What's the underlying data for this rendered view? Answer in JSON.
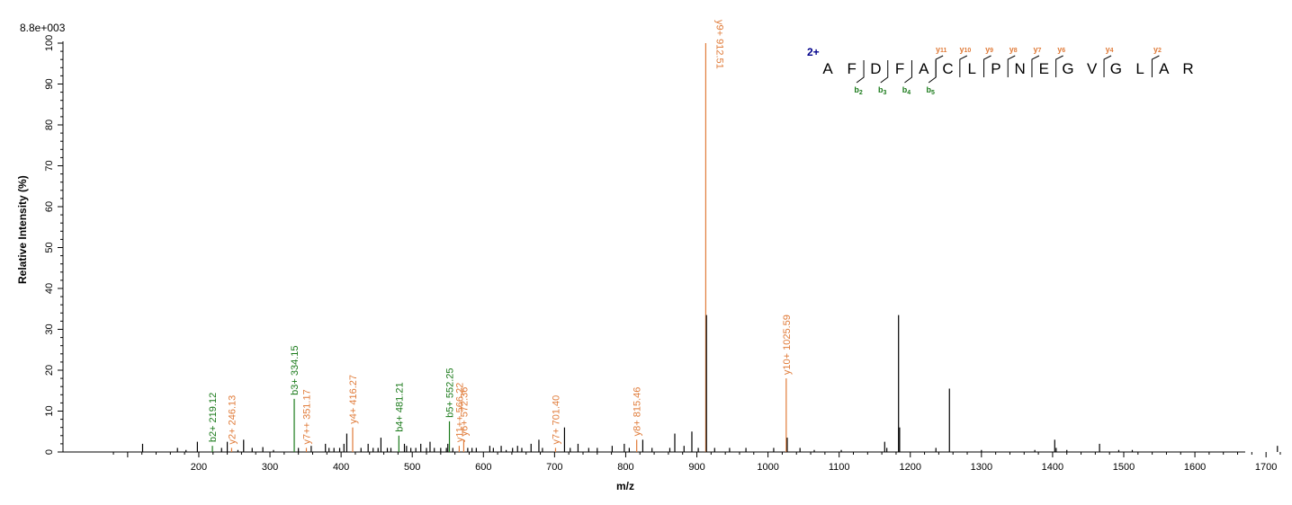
{
  "chart_data": {
    "type": "bar",
    "scale_label": "8.8e+003",
    "xlabel": "m/z",
    "ylabel": "Relative   Intensity (%)",
    "xlim": [
      70,
      1760
    ],
    "ylim": [
      0,
      100
    ],
    "x_ticks": [
      200,
      300,
      400,
      500,
      600,
      700,
      800,
      900,
      1000,
      1100,
      1200,
      1300,
      1400,
      1500,
      1600,
      1700
    ],
    "y_ticks": [
      0,
      10,
      20,
      30,
      40,
      50,
      60,
      70,
      80,
      90,
      100
    ],
    "colors": {
      "b_ion": "#1a7a1a",
      "y_ion": "#e07b39",
      "unassigned": "#000000",
      "charge": "#00008b"
    },
    "peaks": [
      [
        121,
        2
      ],
      [
        170,
        1
      ],
      [
        182,
        0.5
      ],
      [
        198,
        2.5
      ],
      [
        219.12,
        1.5
      ],
      [
        232,
        1
      ],
      [
        240,
        2.5
      ],
      [
        246.13,
        1
      ],
      [
        255,
        0.5
      ],
      [
        263,
        3
      ],
      [
        275,
        1
      ],
      [
        290,
        1.2
      ],
      [
        305,
        0.5
      ],
      [
        334.15,
        13
      ],
      [
        340,
        1
      ],
      [
        351.17,
        1
      ],
      [
        358,
        1.5
      ],
      [
        378,
        2
      ],
      [
        383,
        1
      ],
      [
        390,
        1
      ],
      [
        398,
        1
      ],
      [
        404,
        2
      ],
      [
        408,
        4.5
      ],
      [
        416.27,
        6
      ],
      [
        428,
        1
      ],
      [
        438,
        2
      ],
      [
        445,
        1
      ],
      [
        452,
        1
      ],
      [
        456,
        3.5
      ],
      [
        465,
        1
      ],
      [
        470,
        1
      ],
      [
        481.21,
        4
      ],
      [
        489,
        2
      ],
      [
        492,
        1.5
      ],
      [
        498,
        1
      ],
      [
        505,
        1
      ],
      [
        512,
        2
      ],
      [
        520,
        1
      ],
      [
        525,
        2.5
      ],
      [
        531,
        1
      ],
      [
        540,
        1
      ],
      [
        548,
        1
      ],
      [
        550,
        2
      ],
      [
        552.25,
        7.5
      ],
      [
        557,
        1
      ],
      [
        566,
        1.5
      ],
      [
        572.36,
        3
      ],
      [
        578,
        1
      ],
      [
        584,
        1
      ],
      [
        590,
        1
      ],
      [
        609,
        1.5
      ],
      [
        614,
        1
      ],
      [
        625,
        1.5
      ],
      [
        632,
        0.5
      ],
      [
        641,
        1
      ],
      [
        648,
        1.5
      ],
      [
        654,
        1
      ],
      [
        667,
        2
      ],
      [
        678,
        3
      ],
      [
        683,
        1
      ],
      [
        701.4,
        1
      ],
      [
        714,
        6
      ],
      [
        722,
        1
      ],
      [
        733,
        2
      ],
      [
        748,
        1
      ],
      [
        760,
        1
      ],
      [
        781,
        1.5
      ],
      [
        798,
        2
      ],
      [
        805,
        1
      ],
      [
        815.46,
        3
      ],
      [
        824,
        3
      ],
      [
        837,
        1
      ],
      [
        862,
        1
      ],
      [
        869,
        4.5
      ],
      [
        882,
        1.5
      ],
      [
        893,
        5
      ],
      [
        902,
        1
      ],
      [
        912.51,
        100
      ],
      [
        913.5,
        33.5
      ],
      [
        925,
        1
      ],
      [
        946,
        1
      ],
      [
        969,
        1
      ],
      [
        1008,
        1
      ],
      [
        1025.59,
        18
      ],
      [
        1027,
        3.5
      ],
      [
        1045,
        1
      ],
      [
        1065,
        0.5
      ],
      [
        1103,
        0.5
      ],
      [
        1164,
        2.5
      ],
      [
        1167,
        1
      ],
      [
        1183.5,
        33.5
      ],
      [
        1185,
        6
      ],
      [
        1236,
        1
      ],
      [
        1255,
        15.5
      ],
      [
        1300,
        0.5
      ],
      [
        1375,
        0.5
      ],
      [
        1403,
        3
      ],
      [
        1405,
        1
      ],
      [
        1420,
        0.5
      ],
      [
        1466,
        2
      ],
      [
        1493,
        0.5
      ],
      [
        1512,
        0.5
      ],
      [
        1716,
        1.5
      ]
    ],
    "annotations": [
      {
        "mz": 219.12,
        "rel": 1.5,
        "label": "b2+ 219.12",
        "type": "b"
      },
      {
        "mz": 246.13,
        "rel": 1,
        "label": "y2+ 246.13",
        "type": "y"
      },
      {
        "mz": 334.15,
        "rel": 13,
        "label": "b3+ 334.15",
        "type": "b"
      },
      {
        "mz": 351.17,
        "rel": 1,
        "label": "y7++ 351.17",
        "type": "y"
      },
      {
        "mz": 416.27,
        "rel": 6,
        "label": "y4+ 416.27",
        "type": "y"
      },
      {
        "mz": 481.21,
        "rel": 4,
        "label": "b4+ 481.21",
        "type": "b"
      },
      {
        "mz": 552.25,
        "rel": 7.5,
        "label": "b5+ 552.25",
        "type": "b"
      },
      {
        "mz": 566,
        "rel": 1.5,
        "label": "y11++ 566.22",
        "type": "y"
      },
      {
        "mz": 572.36,
        "rel": 3,
        "label": "y6+ 572.36",
        "type": "y"
      },
      {
        "mz": 701.4,
        "rel": 1,
        "label": "y7+ 701.40",
        "type": "y"
      },
      {
        "mz": 815.46,
        "rel": 3,
        "label": "y8+ 815.46",
        "type": "y"
      },
      {
        "mz": 912.51,
        "rel": 100,
        "label": "y9+ 912.51",
        "type": "y"
      },
      {
        "mz": 1025.59,
        "rel": 18,
        "label": "y10+ 1025.59",
        "type": "y"
      }
    ],
    "sequence": {
      "charge": "2+",
      "letters": [
        "A",
        "F",
        "D",
        "F",
        "A",
        "C",
        "L",
        "P",
        "N",
        "E",
        "G",
        "V",
        "G",
        "L",
        "A",
        "R"
      ],
      "b_ions": [
        {
          "after": 2,
          "label": "b",
          "sub": "2"
        },
        {
          "after": 3,
          "label": "b",
          "sub": "3"
        },
        {
          "after": 4,
          "label": "b",
          "sub": "4"
        },
        {
          "after": 5,
          "label": "b",
          "sub": "5"
        }
      ],
      "y_ions": [
        {
          "after": 5,
          "label": "y",
          "sub": "11"
        },
        {
          "after": 6,
          "label": "y",
          "sub": "10"
        },
        {
          "after": 7,
          "label": "y",
          "sub": "9"
        },
        {
          "after": 8,
          "label": "y",
          "sub": "8"
        },
        {
          "after": 9,
          "label": "y",
          "sub": "7"
        },
        {
          "after": 10,
          "label": "y",
          "sub": "6"
        },
        {
          "after": 12,
          "label": "y",
          "sub": "4"
        },
        {
          "after": 14,
          "label": "y",
          "sub": "2"
        }
      ]
    }
  }
}
